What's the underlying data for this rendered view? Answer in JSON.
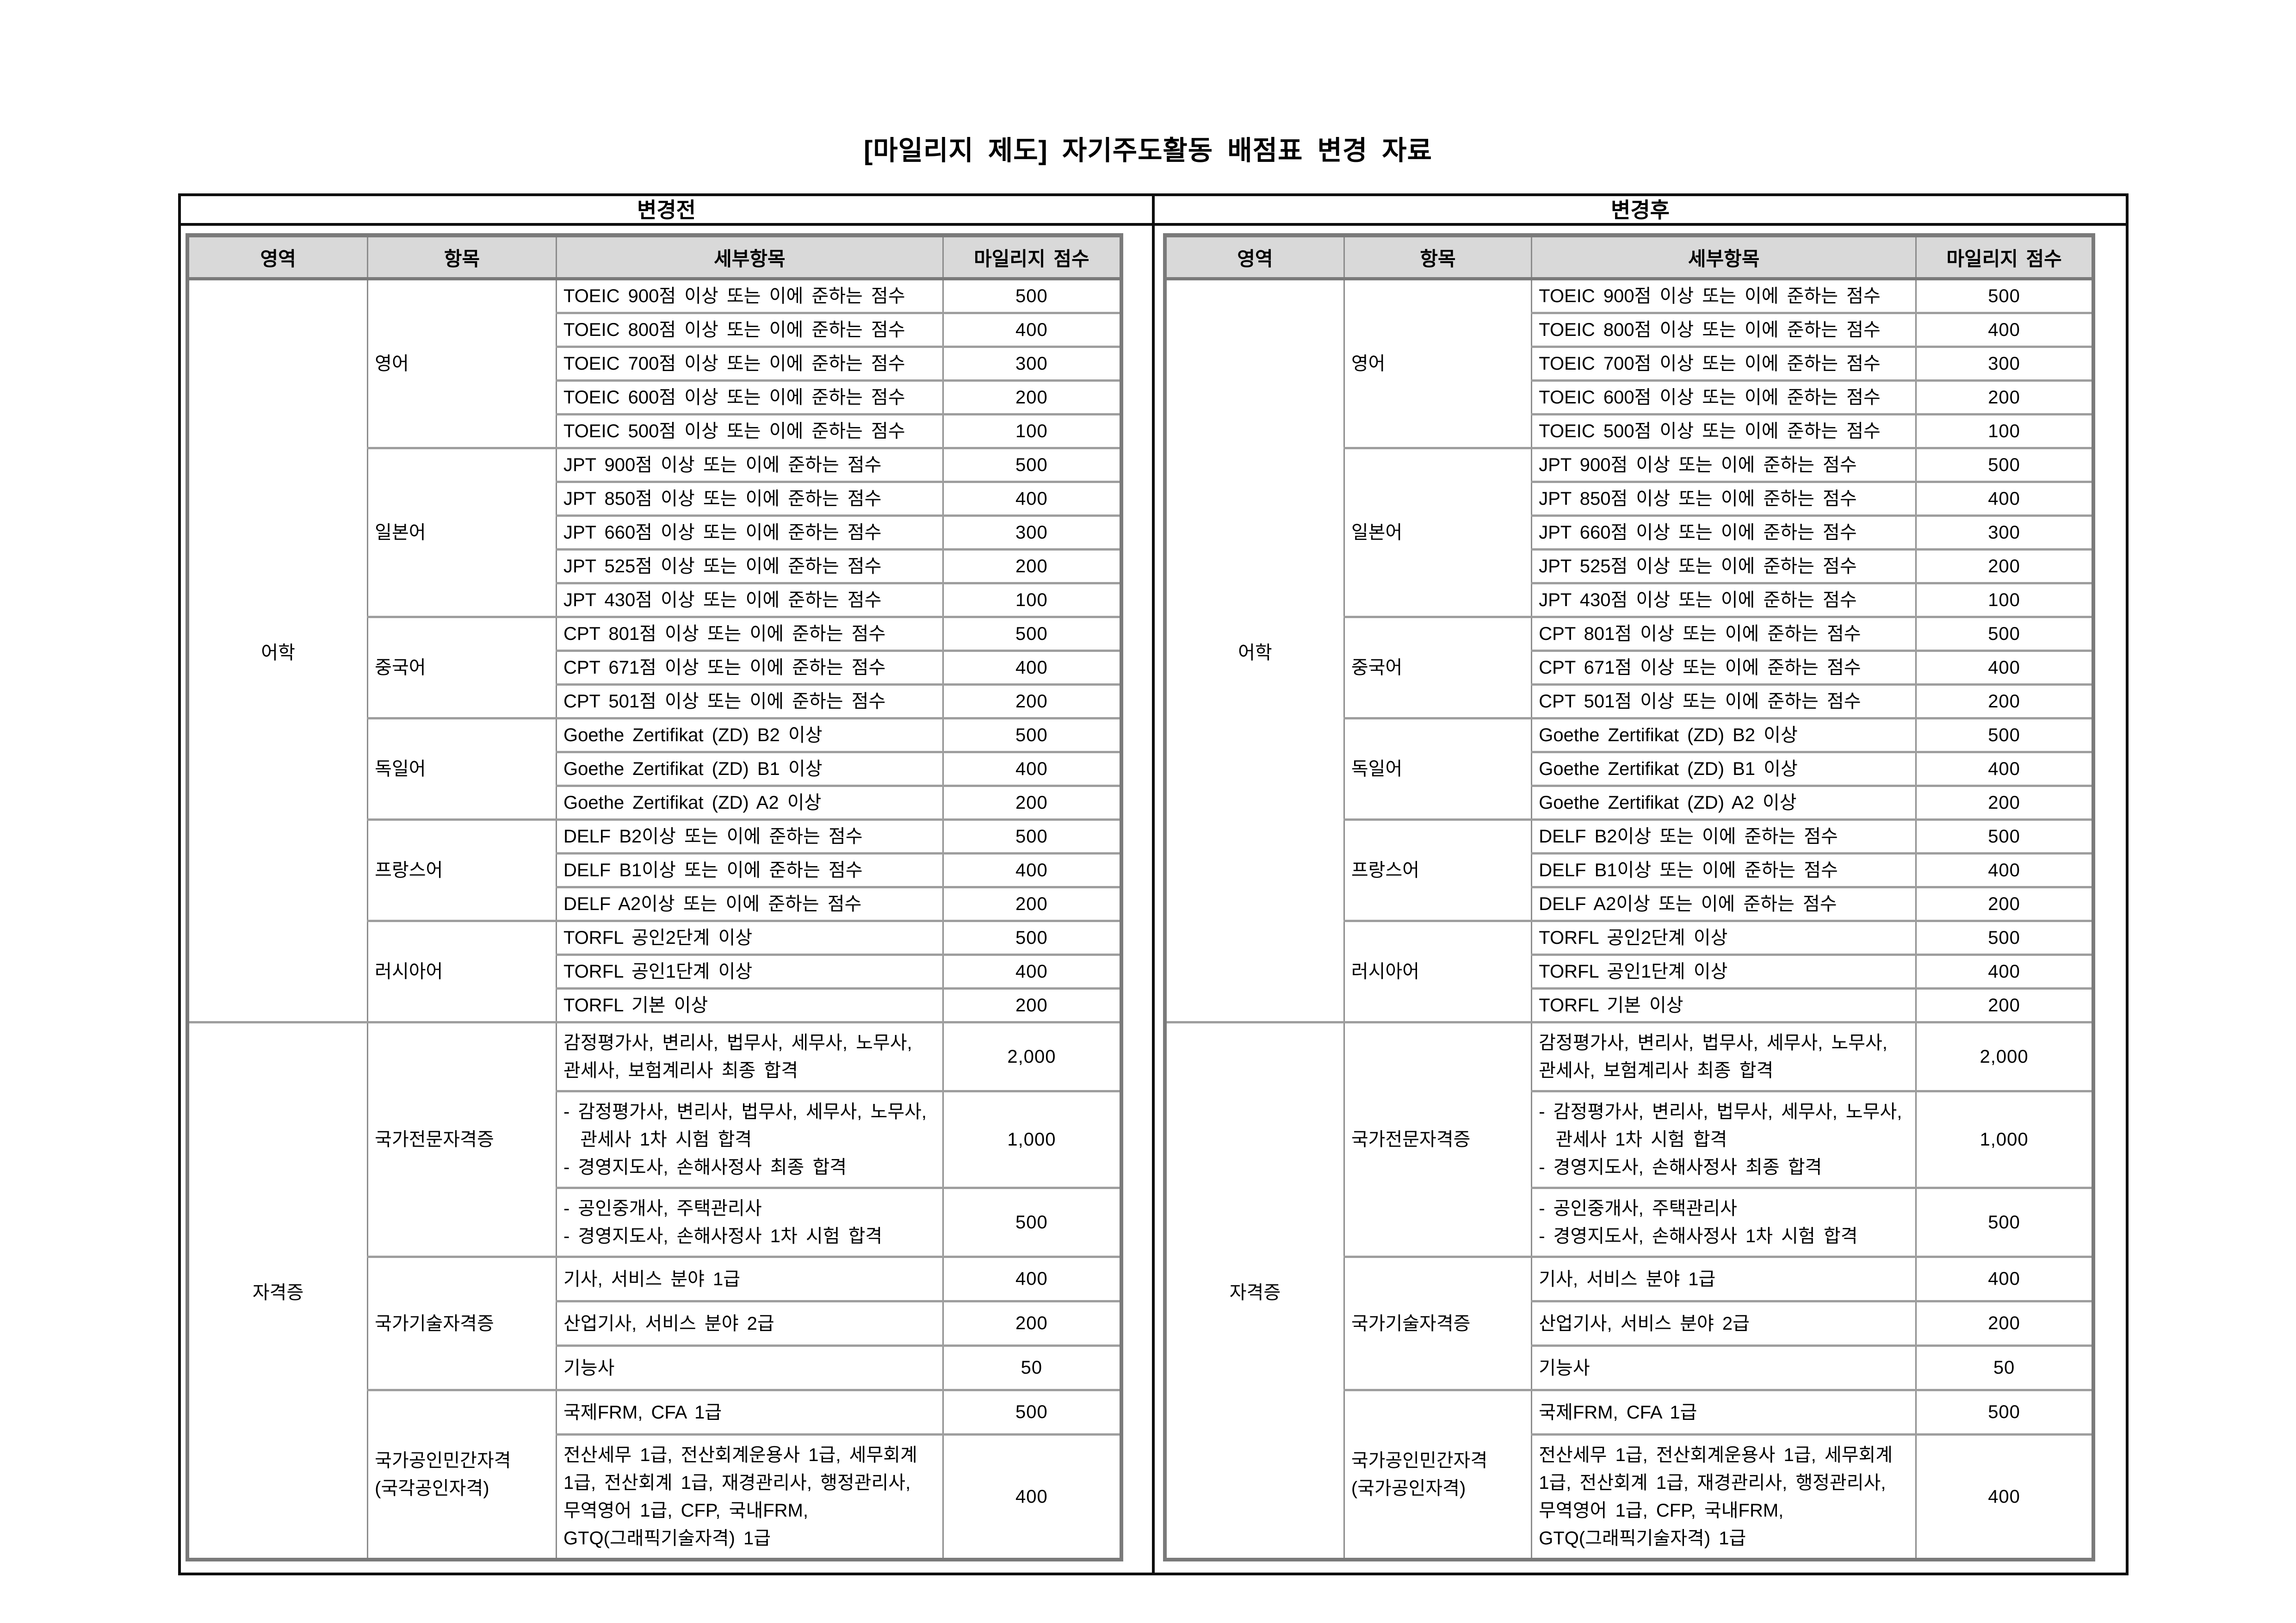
{
  "title": "[마일리지 제도] 자기주도활동 배점표 변경 자료",
  "columns": [
    "영역",
    "항목",
    "세부항목",
    "마일리지 점수"
  ],
  "tables": [
    {
      "label": "변경전",
      "rows": [
        {
          "area": "어학",
          "area_span": 22,
          "item": "영어",
          "item_span": 5,
          "detail": "TOEIC 900점 이상 또는 이에 준하는 점수",
          "score": "500",
          "h": "lang"
        },
        {
          "detail": "TOEIC 800점 이상 또는 이에 준하는 점수",
          "score": "400",
          "h": "lang"
        },
        {
          "detail": "TOEIC 700점 이상 또는 이에 준하는 점수",
          "score": "300",
          "h": "lang"
        },
        {
          "detail": "TOEIC 600점 이상 또는 이에 준하는 점수",
          "score": "200",
          "h": "lang"
        },
        {
          "detail": "TOEIC 500점 이상 또는 이에 준하는 점수",
          "score": "100",
          "h": "lang"
        },
        {
          "item": "일본어",
          "item_span": 5,
          "detail": "JPT 900점 이상 또는 이에 준하는 점수",
          "score": "500",
          "h": "lang"
        },
        {
          "detail": "JPT 850점 이상 또는 이에 준하는 점수",
          "score": "400",
          "h": "lang"
        },
        {
          "detail": "JPT 660점 이상 또는 이에 준하는 점수",
          "score": "300",
          "h": "lang"
        },
        {
          "detail": "JPT 525점 이상 또는 이에 준하는 점수",
          "score": "200",
          "h": "lang"
        },
        {
          "detail": "JPT 430점 이상 또는 이에 준하는 점수",
          "score": "100",
          "h": "lang"
        },
        {
          "item": "중국어",
          "item_span": 3,
          "detail": "CPT 801점 이상 또는 이에 준하는 점수",
          "score": "500",
          "h": "lang"
        },
        {
          "detail": "CPT 671점 이상 또는 이에 준하는 점수",
          "score": "400",
          "h": "lang"
        },
        {
          "detail": "CPT 501점 이상 또는 이에 준하는 점수",
          "score": "200",
          "h": "lang"
        },
        {
          "item": "독일어",
          "item_span": 3,
          "detail": "Goethe Zertifikat (ZD) B2 이상",
          "score": "500",
          "h": "lang"
        },
        {
          "detail": "Goethe Zertifikat (ZD) B1 이상",
          "score": "400",
          "h": "lang"
        },
        {
          "detail": "Goethe Zertifikat (ZD) A2 이상",
          "score": "200",
          "h": "lang"
        },
        {
          "item": "프랑스어",
          "item_span": 3,
          "detail": "DELF B2이상 또는 이에 준하는 점수",
          "score": "500",
          "h": "lang"
        },
        {
          "detail": "DELF B1이상 또는 이에 준하는 점수",
          "score": "400",
          "h": "lang"
        },
        {
          "detail": "DELF A2이상 또는 이에 준하는 점수",
          "score": "200",
          "h": "lang"
        },
        {
          "item": "러시아어",
          "item_span": 3,
          "detail": "TORFL 공인2단계 이상",
          "score": "500",
          "h": "lang"
        },
        {
          "detail": "TORFL 공인1단계 이상",
          "score": "400",
          "h": "lang"
        },
        {
          "detail": "TORFL 기본 이상",
          "score": "200",
          "h": "lang"
        },
        {
          "area": "자격증",
          "area_span": 8,
          "item": "국가전문자격증",
          "item_span": 3,
          "detail": "감정평가사, 변리사, 법무사, 세무사, 노무사,\n관세사, 보험계리사 최종 합격",
          "score": "2,000",
          "h": "multi"
        },
        {
          "detail": "- 감정평가사, 변리사, 법무사, 세무사, 노무사,\n  관세사 1차 시험 합격\n- 경영지도사, 손해사정사 최종 합격",
          "score": "1,000",
          "h": "multi"
        },
        {
          "detail": "- 공인중개사, 주택관리사\n- 경영지도사, 손해사정사 1차 시험 합격",
          "score": "500",
          "h": "multi"
        },
        {
          "item": "국가기술자격증",
          "item_span": 3,
          "detail": "기사, 서비스 분야 1급",
          "score": "400",
          "h": "tall"
        },
        {
          "detail": "산업기사, 서비스 분야 2급",
          "score": "200",
          "h": "tall"
        },
        {
          "detail": "기능사",
          "score": "50",
          "h": "tall"
        },
        {
          "item": "국가공인민간자격\n(국각공인자격)",
          "item_span": 2,
          "detail": "국제FRM, CFA 1급",
          "score": "500",
          "h": "tall"
        },
        {
          "detail": "전산세무 1급, 전산회계운용사 1급, 세무회계\n1급, 전산회계 1급, 재경관리사, 행정관리사,\n무역영어 1급, CFP, 국내FRM,\nGTQ(그래픽기술자격) 1급",
          "score": "400",
          "h": "multi"
        }
      ]
    },
    {
      "label": "변경후",
      "rows": [
        {
          "area": "어학",
          "area_span": 22,
          "item": "영어",
          "item_span": 5,
          "detail": "TOEIC 900점 이상 또는 이에 준하는 점수",
          "score": "500",
          "h": "lang"
        },
        {
          "detail": "TOEIC 800점 이상 또는 이에 준하는 점수",
          "score": "400",
          "h": "lang"
        },
        {
          "detail": "TOEIC 700점 이상 또는 이에 준하는 점수",
          "score": "300",
          "h": "lang"
        },
        {
          "detail": "TOEIC 600점 이상 또는 이에 준하는 점수",
          "score": "200",
          "h": "lang"
        },
        {
          "detail": "TOEIC 500점 이상 또는 이에 준하는 점수",
          "score": "100",
          "h": "lang"
        },
        {
          "item": "일본어",
          "item_span": 5,
          "detail": "JPT 900점 이상 또는 이에 준하는 점수",
          "score": "500",
          "h": "lang"
        },
        {
          "detail": "JPT 850점 이상 또는 이에 준하는 점수",
          "score": "400",
          "h": "lang"
        },
        {
          "detail": "JPT 660점 이상 또는 이에 준하는 점수",
          "score": "300",
          "h": "lang"
        },
        {
          "detail": "JPT 525점 이상 또는 이에 준하는 점수",
          "score": "200",
          "h": "lang"
        },
        {
          "detail": "JPT 430점 이상 또는 이에 준하는 점수",
          "score": "100",
          "h": "lang"
        },
        {
          "item": "중국어",
          "item_span": 3,
          "detail": "CPT 801점 이상 또는 이에 준하는 점수",
          "score": "500",
          "h": "lang"
        },
        {
          "detail": "CPT 671점 이상 또는 이에 준하는 점수",
          "score": "400",
          "h": "lang"
        },
        {
          "detail": "CPT 501점 이상 또는 이에 준하는 점수",
          "score": "200",
          "h": "lang"
        },
        {
          "item": "독일어",
          "item_span": 3,
          "detail": "Goethe Zertifikat (ZD) B2 이상",
          "score": "500",
          "h": "lang"
        },
        {
          "detail": "Goethe Zertifikat (ZD) B1 이상",
          "score": "400",
          "h": "lang"
        },
        {
          "detail": "Goethe Zertifikat (ZD) A2 이상",
          "score": "200",
          "h": "lang"
        },
        {
          "item": "프랑스어",
          "item_span": 3,
          "detail": "DELF B2이상 또는 이에 준하는 점수",
          "score": "500",
          "h": "lang"
        },
        {
          "detail": "DELF B1이상 또는 이에 준하는 점수",
          "score": "400",
          "h": "lang"
        },
        {
          "detail": "DELF A2이상 또는 이에 준하는 점수",
          "score": "200",
          "h": "lang"
        },
        {
          "item": "러시아어",
          "item_span": 3,
          "detail": "TORFL 공인2단계 이상",
          "score": "500",
          "h": "lang"
        },
        {
          "detail": "TORFL 공인1단계 이상",
          "score": "400",
          "h": "lang"
        },
        {
          "detail": "TORFL 기본 이상",
          "score": "200",
          "h": "lang"
        },
        {
          "area": "자격증",
          "area_span": 8,
          "item": "국가전문자격증",
          "item_span": 3,
          "detail": "감정평가사, 변리사, 법무사, 세무사, 노무사,\n관세사, 보험계리사 최종 합격",
          "score": "2,000",
          "h": "multi"
        },
        {
          "detail": "- 감정평가사, 변리사, 법무사, 세무사, 노무사,\n  관세사 1차 시험 합격\n- 경영지도사, 손해사정사 최종 합격",
          "score": "1,000",
          "h": "multi"
        },
        {
          "detail": "- 공인중개사, 주택관리사\n- 경영지도사, 손해사정사 1차 시험 합격",
          "score": "500",
          "h": "multi"
        },
        {
          "item": "국가기술자격증",
          "item_span": 3,
          "detail": "기사, 서비스 분야 1급",
          "score": "400",
          "h": "tall"
        },
        {
          "detail": "산업기사, 서비스 분야 2급",
          "score": "200",
          "h": "tall"
        },
        {
          "detail": "기능사",
          "score": "50",
          "h": "tall"
        },
        {
          "item": "국가공인민간자격\n(국가공인자격)",
          "item_span": 2,
          "detail": "국제FRM, CFA 1급",
          "score": "500",
          "h": "tall"
        },
        {
          "detail": "전산세무 1급, 전산회계운용사 1급, 세무회계\n1급, 전산회계 1급, 재경관리사, 행정관리사,\n무역영어 1급, CFP, 국내FRM,\nGTQ(그래픽기술자격) 1급",
          "score": "400",
          "h": "multi"
        }
      ]
    }
  ]
}
